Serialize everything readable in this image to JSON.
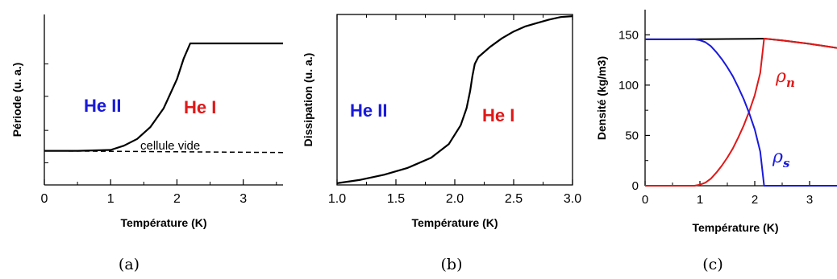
{
  "chart_data": [
    {
      "type": "line",
      "panel_label": "(a)",
      "xlabel": "Température (K)",
      "ylabel": "Période (u. a.)",
      "xlim": [
        0,
        3.6
      ],
      "ylim": [
        0,
        1
      ],
      "xticks": [
        "0",
        "1",
        "2",
        "3"
      ],
      "series": [
        {
          "name": "",
          "style": "solid",
          "color": "#000000",
          "x": [
            0,
            0.5,
            1.0,
            1.2,
            1.4,
            1.6,
            1.8,
            2.0,
            2.1,
            2.2,
            3.6
          ],
          "y": [
            0.2,
            0.2,
            0.205,
            0.23,
            0.27,
            0.34,
            0.45,
            0.62,
            0.74,
            0.83,
            0.83
          ]
        },
        {
          "name": "",
          "style": "dashed",
          "color": "#000000",
          "x": [
            0,
            3.6
          ],
          "y": [
            0.2,
            0.19
          ]
        }
      ],
      "annotations": [
        {
          "text": "He II",
          "color": "#1a1adb"
        },
        {
          "text": "He I",
          "color": "#e01818"
        },
        {
          "text": "cellule vide",
          "color": "#000000"
        }
      ]
    },
    {
      "type": "line",
      "panel_label": "(b)",
      "xlabel": "Température (K)",
      "ylabel": "Dissipation (u. a.)",
      "xlim": [
        1.0,
        3.0
      ],
      "ylim": [
        0,
        1
      ],
      "xticks": [
        "1.0",
        "1.5",
        "2.0",
        "2.5",
        "3.0"
      ],
      "series": [
        {
          "name": "",
          "color": "#000000",
          "x": [
            1.0,
            1.2,
            1.4,
            1.6,
            1.8,
            1.95,
            2.05,
            2.1,
            2.13,
            2.15,
            2.17,
            2.2,
            2.3,
            2.4,
            2.5,
            2.6,
            2.7,
            2.8,
            2.9,
            3.0
          ],
          "y": [
            0.01,
            0.03,
            0.06,
            0.1,
            0.16,
            0.24,
            0.35,
            0.45,
            0.55,
            0.64,
            0.71,
            0.75,
            0.81,
            0.86,
            0.9,
            0.93,
            0.95,
            0.97,
            0.985,
            0.99
          ]
        }
      ],
      "annotations": [
        {
          "text": "He II",
          "color": "#1a1adb"
        },
        {
          "text": "He I",
          "color": "#e01818"
        }
      ]
    },
    {
      "type": "line",
      "panel_label": "(c)",
      "xlabel": "Température (K)",
      "ylabel": "Densité (kg/m3)",
      "xlim": [
        0,
        3.5
      ],
      "ylim": [
        0,
        175
      ],
      "xticks": [
        "0",
        "1",
        "2",
        "3"
      ],
      "yticks": [
        "0",
        "50",
        "100",
        "150"
      ],
      "series": [
        {
          "name": "",
          "color": "#000000",
          "x": [
            0,
            0.5,
            1.0,
            1.5,
            2.0,
            2.17,
            2.5,
            3.0,
            3.5
          ],
          "y": [
            145.5,
            145.5,
            145.6,
            145.8,
            146.0,
            146.2,
            144.5,
            141,
            137
          ]
        },
        {
          "name": "rho_n",
          "color": "#e01818",
          "x": [
            0,
            0.9,
            1.0,
            1.1,
            1.2,
            1.3,
            1.4,
            1.5,
            1.6,
            1.7,
            1.8,
            1.9,
            2.0,
            2.1,
            2.17,
            2.5,
            3.0,
            3.5
          ],
          "y": [
            0,
            0,
            1,
            3,
            7,
            13,
            20,
            28,
            37,
            48,
            60,
            74,
            90,
            112,
            146.2,
            144.5,
            141,
            137
          ]
        },
        {
          "name": "rho_s",
          "color": "#1a1adb",
          "x": [
            0,
            0.9,
            1.0,
            1.1,
            1.2,
            1.3,
            1.4,
            1.5,
            1.6,
            1.7,
            1.8,
            1.9,
            2.0,
            2.1,
            2.17,
            2.5,
            3.5
          ],
          "y": [
            145.5,
            145.5,
            144.6,
            142.6,
            138.7,
            132.7,
            125.8,
            117.8,
            108.8,
            97.8,
            85.9,
            71.9,
            56,
            34,
            0,
            0,
            0
          ]
        }
      ],
      "annotations": [
        {
          "text": "ρ",
          "sub": "n",
          "color": "#e01818"
        },
        {
          "text": "ρ",
          "sub": "s",
          "color": "#1a1adb"
        }
      ]
    }
  ]
}
